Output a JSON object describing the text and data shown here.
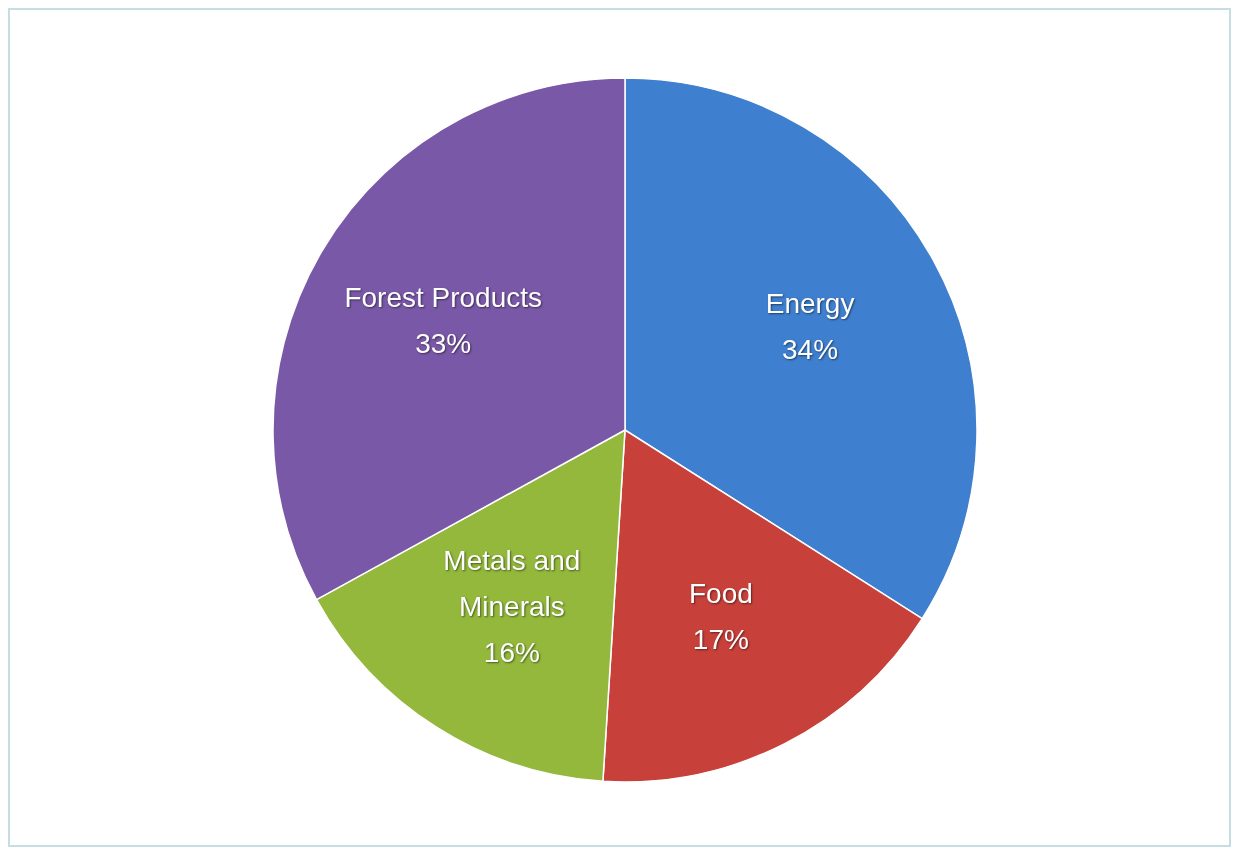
{
  "chart_data": {
    "type": "pie",
    "categories": [
      "Energy",
      "Food",
      "Metals and Minerals",
      "Forest Products"
    ],
    "values": [
      34,
      17,
      16,
      33
    ],
    "colors": [
      "#3f7fcf",
      "#c8403a",
      "#93b83c",
      "#7a58a8"
    ],
    "value_labels": [
      "34%",
      "17%",
      "16%",
      "33%"
    ]
  }
}
